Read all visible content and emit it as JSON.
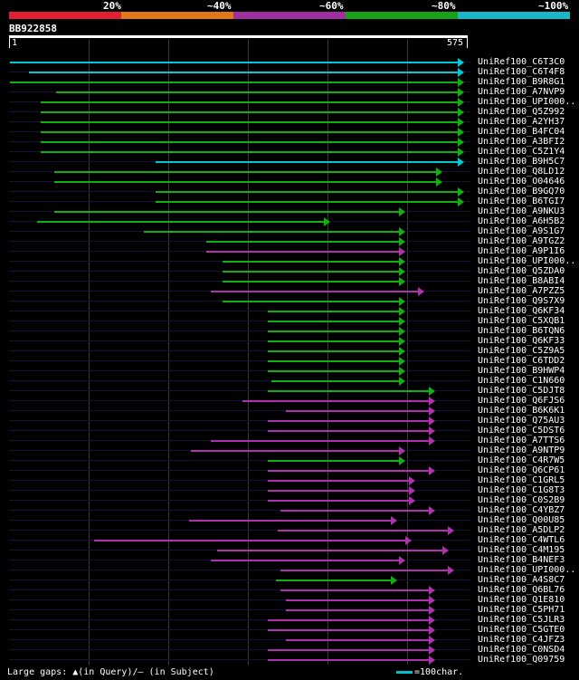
{
  "identity_bar": {
    "labels": [
      "20%",
      "~40%",
      "~60%",
      "~80%",
      "~100%"
    ],
    "colors": [
      "#e02030",
      "#e07818",
      "#a030a0",
      "#18a018",
      "#18b8c8"
    ]
  },
  "query": {
    "id": "BB922858",
    "start": "1",
    "end": "575",
    "length": 575
  },
  "colors": {
    "cyan": "#00c8d8",
    "green": "#10b010",
    "purple": "#b030b0",
    "grid": "#3a3a3a"
  },
  "hits": [
    {
      "name": "UniRef100_C6T3C0",
      "start": 1,
      "end": 575,
      "color": "cyan"
    },
    {
      "name": "UniRef100_C6T4F8",
      "start": 25,
      "end": 575,
      "color": "cyan"
    },
    {
      "name": "UniRef100_B9R8G1",
      "start": 1,
      "end": 575,
      "color": "green"
    },
    {
      "name": "UniRef100_A7NVP9",
      "start": 60,
      "end": 575,
      "color": "green"
    },
    {
      "name": "UniRef100_UPI000..",
      "start": 40,
      "end": 575,
      "color": "green"
    },
    {
      "name": "UniRef100_Q5Z992",
      "start": 40,
      "end": 575,
      "color": "green"
    },
    {
      "name": "UniRef100_A2YH37",
      "start": 40,
      "end": 575,
      "color": "green"
    },
    {
      "name": "UniRef100_B4FC04",
      "start": 40,
      "end": 575,
      "color": "green"
    },
    {
      "name": "UniRef100_A3BFI2",
      "start": 40,
      "end": 575,
      "color": "green"
    },
    {
      "name": "UniRef100_C5Z1Y4",
      "start": 40,
      "end": 575,
      "color": "green"
    },
    {
      "name": "UniRef100_B9H5C7",
      "start": 185,
      "end": 575,
      "color": "cyan"
    },
    {
      "name": "UniRef100_Q8LD12",
      "start": 57,
      "end": 548,
      "color": "green"
    },
    {
      "name": "UniRef100_O04646",
      "start": 57,
      "end": 548,
      "color": "green"
    },
    {
      "name": "UniRef100_B9GQ70",
      "start": 185,
      "end": 575,
      "color": "green"
    },
    {
      "name": "UniRef100_B6TGI7",
      "start": 185,
      "end": 575,
      "color": "green"
    },
    {
      "name": "UniRef100_A9NKU3",
      "start": 57,
      "end": 500,
      "color": "green"
    },
    {
      "name": "UniRef100_A6H5B2",
      "start": 35,
      "end": 405,
      "color": "green"
    },
    {
      "name": "UniRef100_A9S1G7",
      "start": 170,
      "end": 500,
      "color": "green"
    },
    {
      "name": "UniRef100_A9TGZ2",
      "start": 250,
      "end": 500,
      "color": "green"
    },
    {
      "name": "UniRef100_A9P1I6",
      "start": 250,
      "end": 500,
      "color": "purple"
    },
    {
      "name": "UniRef100_UPI000..",
      "start": 270,
      "end": 500,
      "color": "green"
    },
    {
      "name": "UniRef100_Q5ZDA0",
      "start": 270,
      "end": 500,
      "color": "green"
    },
    {
      "name": "UniRef100_B8ABI4",
      "start": 270,
      "end": 500,
      "color": "green"
    },
    {
      "name": "UniRef100_A7PZZ5",
      "start": 255,
      "end": 525,
      "color": "purple"
    },
    {
      "name": "UniRef100_Q9S7X9",
      "start": 270,
      "end": 500,
      "color": "green"
    },
    {
      "name": "UniRef100_Q6KF34",
      "start": 328,
      "end": 500,
      "color": "green"
    },
    {
      "name": "UniRef100_C5XQB1",
      "start": 328,
      "end": 500,
      "color": "green"
    },
    {
      "name": "UniRef100_B6TQN6",
      "start": 328,
      "end": 500,
      "color": "green"
    },
    {
      "name": "UniRef100_Q6KF33",
      "start": 328,
      "end": 500,
      "color": "green"
    },
    {
      "name": "UniRef100_C5Z9A5",
      "start": 328,
      "end": 500,
      "color": "green"
    },
    {
      "name": "UniRef100_C6TDD2",
      "start": 328,
      "end": 500,
      "color": "green"
    },
    {
      "name": "UniRef100_B9HWP4",
      "start": 328,
      "end": 500,
      "color": "green"
    },
    {
      "name": "UniRef100_C1N660",
      "start": 332,
      "end": 500,
      "color": "green"
    },
    {
      "name": "UniRef100_C5DJT8",
      "start": 328,
      "end": 538,
      "color": "green"
    },
    {
      "name": "UniRef100_Q6FJS6",
      "start": 295,
      "end": 538,
      "color": "purple"
    },
    {
      "name": "UniRef100_B6K6K1",
      "start": 350,
      "end": 538,
      "color": "purple"
    },
    {
      "name": "UniRef100_Q75AU3",
      "start": 328,
      "end": 538,
      "color": "purple"
    },
    {
      "name": "UniRef100_C5DST6",
      "start": 328,
      "end": 538,
      "color": "purple"
    },
    {
      "name": "UniRef100_A7TTS6",
      "start": 255,
      "end": 538,
      "color": "purple"
    },
    {
      "name": "UniRef100_A9NTP9",
      "start": 230,
      "end": 500,
      "color": "purple"
    },
    {
      "name": "UniRef100_C4R7W5",
      "start": 328,
      "end": 500,
      "color": "green"
    },
    {
      "name": "UniRef100_Q6CP61",
      "start": 328,
      "end": 538,
      "color": "purple"
    },
    {
      "name": "UniRef100_C1GRL5",
      "start": 328,
      "end": 513,
      "color": "purple"
    },
    {
      "name": "UniRef100_C1G8T3",
      "start": 328,
      "end": 513,
      "color": "purple"
    },
    {
      "name": "UniRef100_C0S2B9",
      "start": 328,
      "end": 513,
      "color": "purple"
    },
    {
      "name": "UniRef100_C4YBZ7",
      "start": 343,
      "end": 538,
      "color": "purple"
    },
    {
      "name": "UniRef100_Q00U85",
      "start": 228,
      "end": 490,
      "color": "purple"
    },
    {
      "name": "UniRef100_A5DLP2",
      "start": 340,
      "end": 562,
      "color": "purple"
    },
    {
      "name": "UniRef100_C4WTL6",
      "start": 108,
      "end": 508,
      "color": "purple"
    },
    {
      "name": "UniRef100_C4M195",
      "start": 263,
      "end": 555,
      "color": "purple"
    },
    {
      "name": "UniRef100_B4NEF3",
      "start": 255,
      "end": 500,
      "color": "purple"
    },
    {
      "name": "UniRef100_UPI000..",
      "start": 343,
      "end": 562,
      "color": "purple"
    },
    {
      "name": "UniRef100_A4S8C7",
      "start": 338,
      "end": 490,
      "color": "green"
    },
    {
      "name": "UniRef100_Q6BL76",
      "start": 343,
      "end": 538,
      "color": "purple"
    },
    {
      "name": "UniRef100_Q1E810",
      "start": 350,
      "end": 538,
      "color": "purple"
    },
    {
      "name": "UniRef100_C5PH71",
      "start": 350,
      "end": 538,
      "color": "purple"
    },
    {
      "name": "UniRef100_C5JLR3",
      "start": 328,
      "end": 538,
      "color": "purple"
    },
    {
      "name": "UniRef100_C5GTE0",
      "start": 328,
      "end": 538,
      "color": "purple"
    },
    {
      "name": "UniRef100_C4JFZ3",
      "start": 350,
      "end": 538,
      "color": "purple"
    },
    {
      "name": "UniRef100_C0NSD4",
      "start": 328,
      "end": 538,
      "color": "purple"
    },
    {
      "name": "UniRef100_Q09759",
      "start": 328,
      "end": 538,
      "color": "purple"
    }
  ],
  "legend": {
    "text": "Large gaps: ▲(in Query)/— (in Subject)",
    "scale_text": "=100char."
  }
}
